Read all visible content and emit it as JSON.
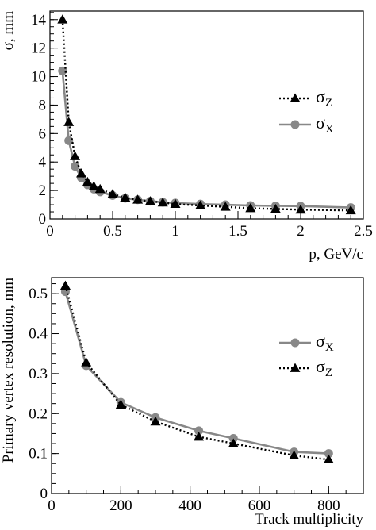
{
  "chart_data": [
    {
      "type": "line",
      "xlabel": "p, GeV/c",
      "ylabel": "σ, mm",
      "xlim": [
        0,
        2.5
      ],
      "ylim": [
        0,
        14.6
      ],
      "x_ticks": [
        "0",
        "0.5",
        "1",
        "1.5",
        "2",
        "2.5"
      ],
      "y_ticks": [
        "0",
        "2",
        "4",
        "6",
        "8",
        "10",
        "12",
        "14"
      ],
      "legend_position": "top-right",
      "series": [
        {
          "name": "σZ",
          "name_main": "σ",
          "name_sub": "Z",
          "marker": "triangle",
          "line_style": "dotted",
          "color": "#000000",
          "x": [
            0.1,
            0.15,
            0.2,
            0.25,
            0.3,
            0.35,
            0.4,
            0.5,
            0.6,
            0.7,
            0.8,
            0.9,
            1.0,
            1.2,
            1.4,
            1.6,
            1.8,
            2.0,
            2.4
          ],
          "y": [
            14.0,
            6.8,
            4.4,
            3.2,
            2.6,
            2.3,
            2.1,
            1.75,
            1.5,
            1.35,
            1.25,
            1.15,
            1.05,
            0.95,
            0.85,
            0.75,
            0.7,
            0.65,
            0.6
          ]
        },
        {
          "name": "σX",
          "name_main": "σ",
          "name_sub": "X",
          "marker": "circle",
          "line_style": "solid",
          "color": "#888888",
          "x": [
            0.1,
            0.15,
            0.2,
            0.25,
            0.3,
            0.35,
            0.4,
            0.5,
            0.6,
            0.7,
            0.8,
            0.9,
            1.0,
            1.2,
            1.4,
            1.6,
            1.8,
            2.0,
            2.4
          ],
          "y": [
            10.4,
            5.5,
            3.7,
            2.9,
            2.4,
            2.1,
            1.9,
            1.65,
            1.45,
            1.35,
            1.25,
            1.18,
            1.12,
            1.05,
            1.0,
            0.95,
            0.92,
            0.9,
            0.8
          ]
        }
      ]
    },
    {
      "type": "line",
      "xlabel": "Track multiplicity",
      "ylabel": "Primary vertex resolution, mm",
      "xlim": [
        0,
        900
      ],
      "ylim": [
        0,
        0.54
      ],
      "x_ticks": [
        "0",
        "200",
        "400",
        "600",
        "800"
      ],
      "y_ticks": [
        "0",
        "0.1",
        "0.2",
        "0.3",
        "0.4",
        "0.5"
      ],
      "legend_position": "right",
      "series": [
        {
          "name": "σX",
          "name_main": "σ",
          "name_sub": "X",
          "marker": "circle",
          "line_style": "solid",
          "color": "#888888",
          "x": [
            40,
            100,
            200,
            300,
            425,
            525,
            700,
            800
          ],
          "y": [
            0.505,
            0.32,
            0.228,
            0.19,
            0.157,
            0.138,
            0.104,
            0.1
          ]
        },
        {
          "name": "σZ",
          "name_main": "σ",
          "name_sub": "Z",
          "marker": "triangle",
          "line_style": "dotted",
          "color": "#000000",
          "x": [
            40,
            100,
            200,
            300,
            425,
            525,
            700,
            800
          ],
          "y": [
            0.52,
            0.328,
            0.222,
            0.18,
            0.142,
            0.125,
            0.095,
            0.085
          ]
        }
      ]
    }
  ]
}
